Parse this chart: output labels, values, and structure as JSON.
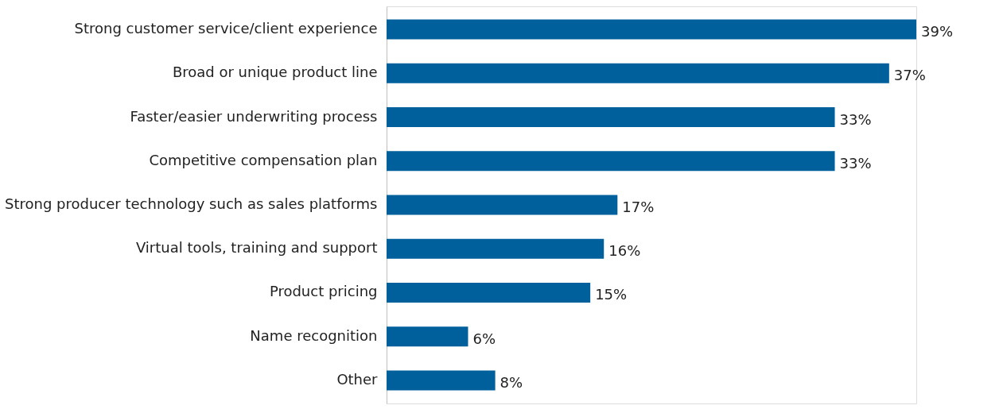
{
  "chart_data": {
    "type": "bar",
    "orientation": "horizontal",
    "categories": [
      "Strong customer service/client experience",
      "Broad or unique product line",
      "Faster/easier underwriting process",
      "Competitive compensation plan",
      "Strong producer technology such as sales platforms",
      "Virtual tools, training and support",
      "Product pricing",
      "Name recognition",
      "Other"
    ],
    "values": [
      39,
      37,
      33,
      33,
      17,
      16,
      15,
      6,
      8
    ],
    "value_labels": [
      "39%",
      "37%",
      "33%",
      "33%",
      "17%",
      "16%",
      "15%",
      "6%",
      "8%"
    ],
    "color": "#00609c"
  }
}
